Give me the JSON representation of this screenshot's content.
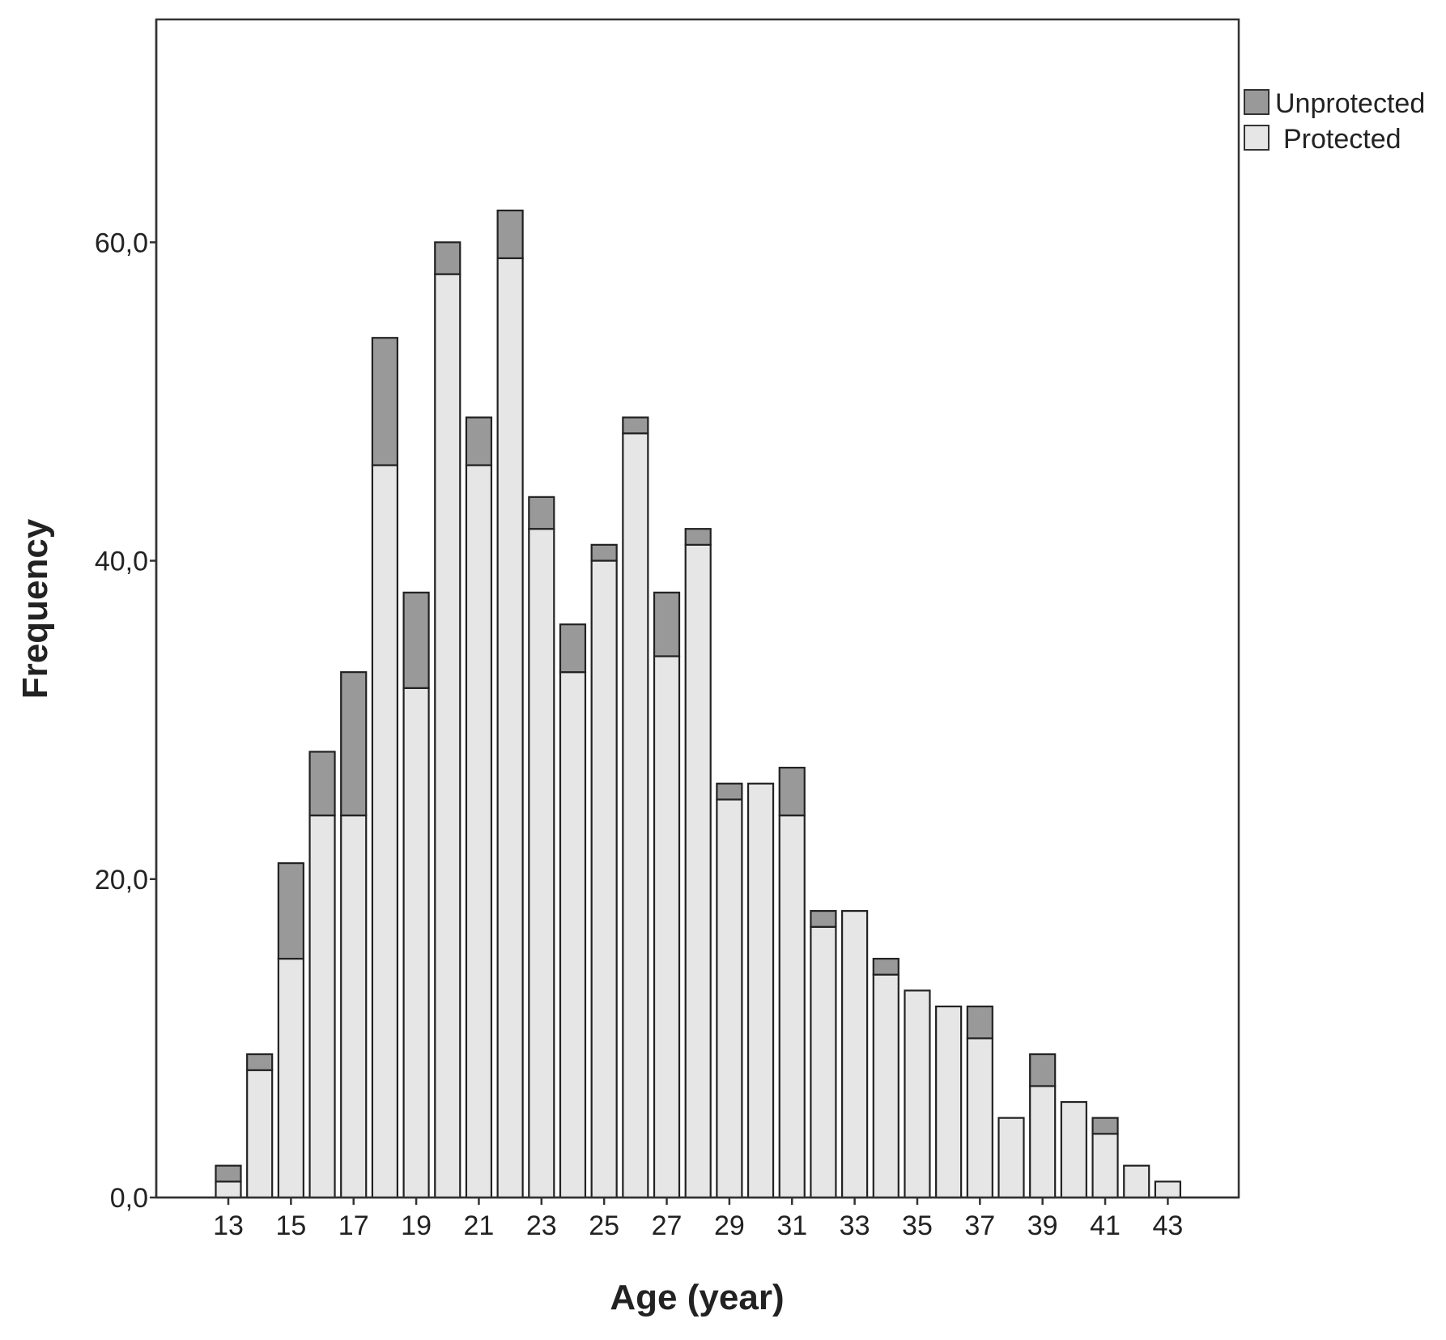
{
  "chart_data": {
    "type": "bar",
    "stacked": true,
    "title": "",
    "xlabel": "Age (year)",
    "ylabel": "Frequency",
    "ylim": [
      0,
      74
    ],
    "yticks": [
      0,
      20,
      40,
      60
    ],
    "ytick_labels": [
      "0,0",
      "20,0",
      "40,0",
      "60,0"
    ],
    "xticks": [
      13,
      15,
      17,
      19,
      21,
      23,
      25,
      27,
      29,
      31,
      33,
      35,
      37,
      39,
      41,
      43
    ],
    "xtick_labels": [
      "13",
      "15",
      "17",
      "19",
      "21",
      "23",
      "25",
      "27",
      "29",
      "31",
      "33",
      "35",
      "37",
      "39",
      "41",
      "43"
    ],
    "categories": [
      13,
      14,
      15,
      16,
      17,
      18,
      19,
      20,
      21,
      22,
      23,
      24,
      25,
      26,
      27,
      28,
      29,
      30,
      31,
      32,
      33,
      34,
      35,
      36,
      37,
      38,
      39,
      40,
      41,
      42,
      43
    ],
    "series": [
      {
        "name": "Protected",
        "color": "#e6e6e6",
        "values": [
          1,
          8,
          15,
          24,
          24,
          46,
          32,
          58,
          46,
          59,
          42,
          33,
          40,
          48,
          34,
          41,
          25,
          26,
          24,
          17,
          18,
          14,
          13,
          12,
          10,
          5,
          7,
          6,
          4,
          2,
          1
        ]
      },
      {
        "name": "Unprotected",
        "color": "#999999",
        "values": [
          1,
          1,
          6,
          4,
          9,
          8,
          6,
          2,
          3,
          3,
          2,
          3,
          1,
          1,
          4,
          1,
          1,
          0,
          3,
          1,
          0,
          1,
          0,
          0,
          2,
          0,
          2,
          0,
          1,
          0,
          0
        ]
      }
    ],
    "legend": {
      "position": "top-right",
      "entries": [
        "Unprotected",
        "Protected"
      ]
    },
    "grid": false
  }
}
